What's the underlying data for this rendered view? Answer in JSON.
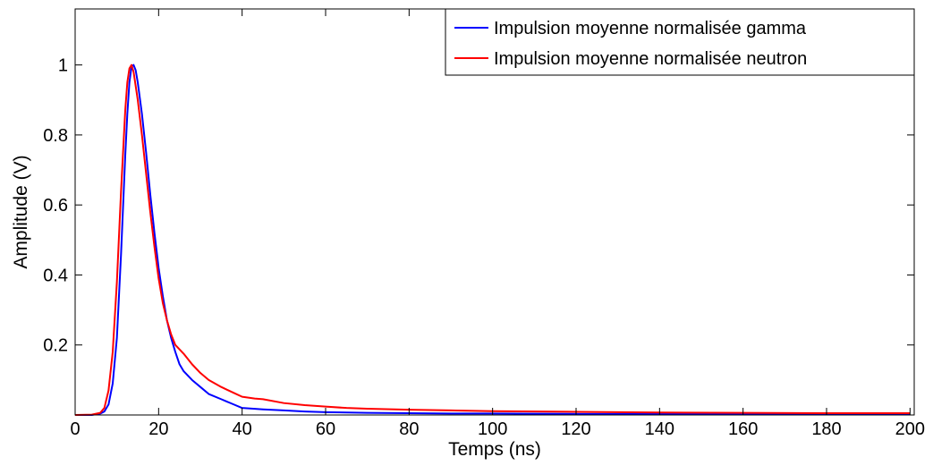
{
  "chart_data": {
    "type": "line",
    "title": "",
    "xlabel": "Temps (ns)",
    "ylabel": "Amplitude (V)",
    "xlim": [
      0,
      201
    ],
    "ylim": [
      0,
      1.16
    ],
    "x_ticks": [
      0,
      20,
      40,
      60,
      80,
      100,
      120,
      140,
      160,
      180,
      200
    ],
    "x_tick_labels": [
      "0",
      "20",
      "40",
      "60",
      "80",
      "100",
      "120",
      "140",
      "160",
      "180",
      "200"
    ],
    "y_ticks": [
      0.2,
      0.4,
      0.6,
      0.8,
      1.0
    ],
    "y_tick_labels": [
      "0.2",
      "0.4",
      "0.6",
      "0.8",
      "1"
    ],
    "grid": false,
    "legend_position": "top-right",
    "series": [
      {
        "name": "Impulsion moyenne normalisée gamma",
        "color": "#0000ff",
        "x": [
          0,
          4,
          6,
          7,
          8,
          9,
          10,
          11,
          12,
          12.5,
          13,
          13.5,
          14,
          14.5,
          15,
          16,
          17,
          18,
          19,
          20,
          21,
          22,
          23,
          24,
          25,
          26,
          28,
          30,
          32,
          35,
          38,
          40,
          45,
          50,
          55,
          60,
          70,
          80,
          90,
          100,
          120,
          140,
          160,
          180,
          200
        ],
        "y": [
          0,
          0,
          0.004,
          0.01,
          0.03,
          0.09,
          0.22,
          0.46,
          0.74,
          0.86,
          0.95,
          0.995,
          1.0,
          0.985,
          0.95,
          0.86,
          0.75,
          0.63,
          0.52,
          0.42,
          0.34,
          0.27,
          0.22,
          0.18,
          0.145,
          0.125,
          0.1,
          0.08,
          0.06,
          0.045,
          0.03,
          0.02,
          0.016,
          0.013,
          0.01,
          0.008,
          0.006,
          0.005,
          0.004,
          0.004,
          0.003,
          0.003,
          0.003,
          0.002,
          0.002
        ]
      },
      {
        "name": "Impulsion moyenne normalisée neutron",
        "color": "#ff0000",
        "x": [
          0,
          4,
          6,
          7,
          8,
          9,
          10,
          11,
          12,
          12.5,
          13,
          13.5,
          14,
          15,
          16,
          17,
          18,
          19,
          20,
          21,
          22,
          23,
          24,
          26,
          28,
          30,
          32,
          35,
          38,
          40,
          43,
          45,
          50,
          55,
          60,
          65,
          70,
          80,
          90,
          100,
          120,
          140,
          160,
          180,
          200
        ],
        "y": [
          0,
          0.001,
          0.006,
          0.02,
          0.07,
          0.18,
          0.38,
          0.64,
          0.87,
          0.95,
          0.99,
          1.0,
          0.98,
          0.9,
          0.8,
          0.69,
          0.58,
          0.48,
          0.39,
          0.32,
          0.27,
          0.23,
          0.2,
          0.175,
          0.145,
          0.12,
          0.1,
          0.08,
          0.063,
          0.052,
          0.047,
          0.045,
          0.034,
          0.028,
          0.024,
          0.02,
          0.018,
          0.015,
          0.013,
          0.011,
          0.009,
          0.007,
          0.006,
          0.005,
          0.005
        ]
      }
    ]
  }
}
